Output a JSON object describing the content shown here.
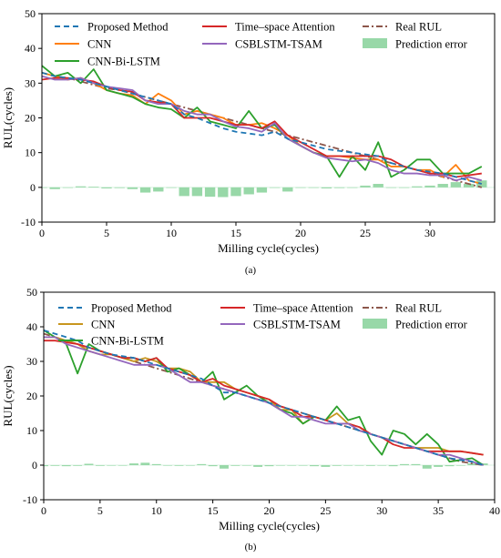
{
  "colors": {
    "proposed": "#1f77b4",
    "cnn_a": "#ff7f0e",
    "cnn_b": "#c8961e",
    "bilstm": "#2ca02c",
    "tsa": "#d62728",
    "csb": "#9467bd",
    "real": "#8c564b",
    "error": "#98d8a8"
  },
  "legend_labels": {
    "proposed": "Proposed Method",
    "cnn": "CNN",
    "bilstm": "CNN-Bi-LSTM",
    "tsa": "Time–space Attention",
    "csb": "CSBLSTM-TSAM",
    "real": "Real RUL",
    "error": "Prediction error"
  },
  "chart_data": [
    {
      "panel_label": "(a)",
      "type": "line",
      "xlabel": "Milling cycle(cycles)",
      "ylabel": "RUL(cycles)",
      "xlim": [
        0,
        35
      ],
      "ylim": [
        -10,
        50
      ],
      "xticks": [
        0,
        5,
        10,
        15,
        20,
        25,
        30
      ],
      "yticks": [
        -10,
        0,
        10,
        20,
        30,
        40,
        50
      ],
      "x": [
        0,
        1,
        2,
        3,
        4,
        5,
        6,
        7,
        8,
        9,
        10,
        11,
        12,
        13,
        14,
        15,
        16,
        17,
        18,
        19,
        20,
        21,
        22,
        23,
        24,
        25,
        26,
        27,
        28,
        29,
        30,
        31,
        32,
        33,
        34
      ],
      "series": [
        {
          "key": "real",
          "name": "Real RUL",
          "style": "dashdot",
          "values": [
            33,
            32,
            31.5,
            30.5,
            29.5,
            28.5,
            28,
            27,
            26,
            25,
            24,
            23,
            22,
            21,
            20,
            19,
            18,
            17,
            16,
            15,
            14,
            13,
            12,
            11,
            10,
            9,
            8,
            7,
            6,
            5,
            4,
            3,
            2,
            1,
            0
          ]
        },
        {
          "key": "cnn",
          "name": "CNN",
          "style": "solid",
          "values": [
            33,
            32,
            31,
            31.5,
            30,
            28,
            27,
            26.5,
            24,
            27,
            25,
            21,
            22,
            21,
            20,
            18,
            18,
            18.5,
            17,
            15,
            12,
            10,
            9,
            9,
            8.5,
            8,
            8,
            6,
            6,
            5,
            5,
            3,
            6.5,
            2,
            1
          ]
        },
        {
          "key": "bilstm",
          "name": "CNN-Bi-LSTM",
          "style": "solid",
          "values": [
            35,
            32,
            33,
            30,
            34,
            28,
            27,
            26,
            24,
            23,
            22.5,
            20,
            23,
            19,
            18,
            17,
            22,
            17,
            18,
            14,
            12,
            10,
            9,
            3,
            9,
            5,
            13,
            3,
            5,
            8,
            8,
            4,
            4,
            4,
            6
          ]
        },
        {
          "key": "tsa",
          "name": "Time–space Attention",
          "style": "solid",
          "values": [
            31,
            31.5,
            31.5,
            31,
            30.5,
            29,
            28,
            27.5,
            25,
            24.5,
            24,
            20,
            20,
            20,
            19,
            18,
            18,
            17,
            19,
            15,
            13,
            11,
            9,
            9,
            9,
            9,
            9,
            8,
            6,
            5,
            4,
            4,
            3,
            3.5,
            4
          ]
        },
        {
          "key": "csb",
          "name": "CSBLSTM-TSAM",
          "style": "solid",
          "values": [
            32,
            31,
            31,
            31.5,
            30,
            29,
            28.5,
            28,
            25,
            24,
            24,
            22,
            21,
            21,
            19,
            17.5,
            17,
            16,
            18.5,
            14,
            12,
            10,
            8.5,
            8,
            7.5,
            8,
            7,
            5,
            4,
            4,
            3.5,
            3.5,
            2,
            3,
            2
          ]
        },
        {
          "key": "proposed",
          "name": "Proposed Method",
          "style": "dashed",
          "values": [
            33,
            32,
            31.5,
            31,
            30,
            29,
            28,
            27,
            26,
            25,
            24,
            21,
            20,
            18.5,
            17,
            16,
            15.5,
            15,
            16,
            14,
            13,
            12,
            11,
            10.5,
            10,
            9.5,
            9,
            7,
            6,
            5,
            4.5,
            4,
            3,
            2,
            1
          ]
        }
      ],
      "error": {
        "name": "Prediction error",
        "values": [
          0,
          -0.5,
          0,
          0.3,
          0.2,
          -0.3,
          -0.2,
          -0.5,
          -1.5,
          -1.2,
          0,
          -2.5,
          -2.5,
          -2.7,
          -2.8,
          -2.5,
          -2,
          -1.5,
          0,
          -1.2,
          0,
          0,
          -0.3,
          -0.2,
          0,
          0.5,
          1,
          0,
          0,
          0.3,
          0.5,
          1,
          1.5,
          1,
          2
        ]
      }
    },
    {
      "panel_label": "(b)",
      "type": "line",
      "xlabel": "Milling cycle(cycles)",
      "ylabel": "RUL(cycles)",
      "xlim": [
        0,
        40
      ],
      "ylim": [
        -10,
        50
      ],
      "xticks": [
        0,
        5,
        10,
        15,
        20,
        25,
        30,
        35,
        40
      ],
      "yticks": [
        -10,
        0,
        10,
        20,
        30,
        40,
        50
      ],
      "x": [
        0,
        1,
        2,
        3,
        4,
        5,
        6,
        7,
        8,
        9,
        10,
        11,
        12,
        13,
        14,
        15,
        16,
        17,
        18,
        19,
        20,
        21,
        22,
        23,
        24,
        25,
        26,
        27,
        28,
        29,
        30,
        31,
        32,
        33,
        34,
        35,
        36,
        37,
        38,
        39
      ],
      "series": [
        {
          "key": "real",
          "name": "Real RUL",
          "style": "dashdot",
          "values": [
            38,
            37,
            36,
            35,
            34,
            33,
            32,
            31,
            30,
            29,
            28,
            27,
            26,
            25,
            24,
            23,
            22,
            21,
            20,
            19,
            18,
            17,
            16,
            15,
            14,
            13,
            12,
            11,
            10,
            9,
            8,
            7,
            6,
            5,
            4,
            3,
            2,
            1,
            0.5,
            0
          ]
        },
        {
          "key": "cnn",
          "name": "CNN",
          "style": "solid",
          "values": [
            37,
            37,
            36,
            35,
            33,
            32,
            32,
            31,
            30,
            31,
            30,
            28,
            28,
            27,
            24,
            24,
            24,
            22,
            21,
            20,
            19,
            16,
            16,
            12,
            14,
            13,
            15,
            12,
            11,
            9,
            8,
            7,
            6,
            5,
            5,
            5,
            4,
            4,
            3.5,
            3
          ]
        },
        {
          "key": "bilstm",
          "name": "CNN-Bi-LSTM",
          "style": "solid",
          "values": [
            39,
            37,
            35,
            26.5,
            35,
            33,
            32,
            31,
            31,
            30,
            31,
            27,
            28,
            26,
            24,
            27,
            19,
            21,
            23,
            20,
            18,
            16,
            15,
            12,
            14,
            13,
            17,
            13,
            14,
            7,
            3,
            10,
            9,
            6,
            9,
            6,
            1,
            1.5,
            2,
            0
          ]
        },
        {
          "key": "tsa",
          "name": "Time–space Attention",
          "style": "solid",
          "values": [
            36,
            36,
            35.5,
            35,
            34,
            33,
            32,
            31,
            31,
            30,
            31,
            28,
            27,
            26,
            24,
            25,
            23,
            22,
            21,
            20,
            19,
            17,
            16,
            14,
            14,
            13,
            12,
            12,
            11,
            9,
            8,
            6,
            5,
            5,
            4,
            4,
            4,
            4,
            3.5,
            3
          ]
        },
        {
          "key": "csb",
          "name": "CSBLSTM-TSAM",
          "style": "solid",
          "values": [
            37,
            37,
            35,
            34,
            33,
            32,
            31,
            30,
            29,
            29,
            29,
            28,
            26,
            24,
            24,
            23,
            22,
            21,
            20,
            19,
            18,
            16,
            14,
            14,
            13,
            12,
            12,
            12,
            10,
            9,
            8,
            7,
            6,
            5,
            4,
            3,
            3,
            2,
            1,
            0
          ]
        },
        {
          "key": "proposed",
          "name": "Proposed Method",
          "style": "dashed",
          "values": [
            39,
            38,
            37,
            36,
            34,
            33,
            32,
            31.5,
            31,
            30,
            29,
            28,
            27,
            26,
            25,
            23,
            21,
            21,
            20,
            19,
            18,
            17,
            16,
            15,
            14,
            13,
            12,
            11,
            10,
            9,
            8,
            7,
            6,
            5,
            4,
            3,
            2,
            1.5,
            1,
            0
          ]
        }
      ],
      "error": {
        "name": "Prediction error",
        "values": [
          -0.3,
          -0.2,
          -0.3,
          -0.2,
          0.4,
          -0.2,
          -0.1,
          0,
          0.5,
          0.7,
          0.3,
          0,
          -0.2,
          0,
          0.3,
          -0.3,
          -1,
          -0.2,
          0,
          -0.5,
          -0.3,
          0,
          0,
          0,
          -0.3,
          -0.5,
          -0.2,
          0,
          0,
          -0.2,
          0,
          -0.3,
          0.3,
          0.3,
          -1,
          -0.5,
          -0.3,
          0,
          0.5,
          0.5
        ]
      }
    }
  ]
}
